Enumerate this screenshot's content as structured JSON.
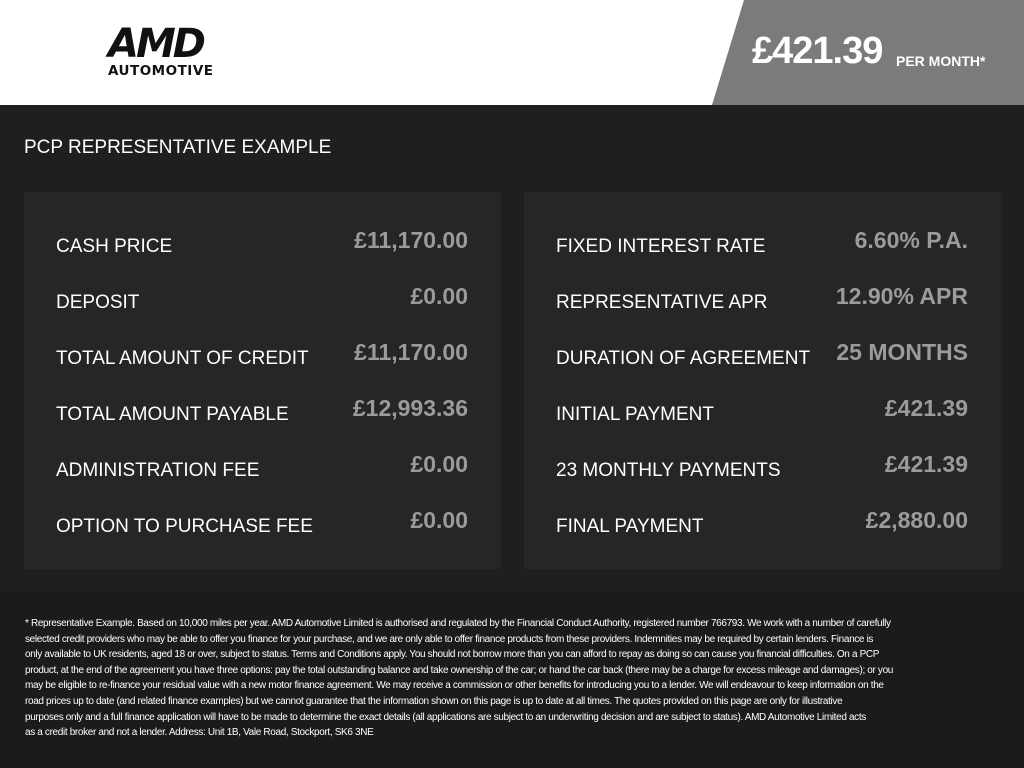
{
  "header": {
    "logo_text": "AMD",
    "logo_subtext": "AUTOMOTIVE",
    "price": "£421.39",
    "price_suffix": "PER MONTH*"
  },
  "title": "PCP REPRESENTATIVE EXAMPLE",
  "left_panel": [
    {
      "label": "CASH PRICE",
      "value": "£11,170.00"
    },
    {
      "label": "DEPOSIT",
      "value": "£0.00"
    },
    {
      "label": "TOTAL AMOUNT OF CREDIT",
      "value": "£11,170.00"
    },
    {
      "label": "TOTAL AMOUNT PAYABLE",
      "value": "£12,993.36"
    },
    {
      "label": "ADMINISTRATION FEE",
      "value": "£0.00"
    },
    {
      "label": "OPTION TO PURCHASE FEE",
      "value": "£0.00"
    }
  ],
  "right_panel": [
    {
      "label": "FIXED INTEREST RATE",
      "value": "6.60% P.A."
    },
    {
      "label": "REPRESENTATIVE APR",
      "value": "12.90% APR"
    },
    {
      "label": "DURATION OF AGREEMENT",
      "value": "25 MONTHS"
    },
    {
      "label": "INITIAL PAYMENT",
      "value": "£421.39"
    },
    {
      "label": "23 MONTHLY PAYMENTS",
      "value": "£421.39"
    },
    {
      "label": "FINAL PAYMENT",
      "value": "£2,880.00"
    }
  ],
  "disclaimer_lines": [
    "* Representative Example. Based on 10,000 miles per year. AMD Automotive Limited is authorised and regulated by the Financial Conduct Authority, registered number 766793. We work with a number of carefully",
    "selected credit providers who may be able to offer you finance for your purchase, and we are only able to offer finance products from these providers. Indemnities may be required by certain lenders. Finance is",
    "only available to UK residents, aged 18 or over, subject to status. Terms and Conditions apply. You should not borrow more than you can afford to repay as doing so can cause you financial difficulties. On a PCP",
    "product, at the end of the agreement you have three options: pay the total outstanding balance and take ownership of the car; or hand the car back (there may be a charge for excess mileage and damages); or you",
    "may be eligible to re-finance your residual value with a new motor finance agreement. We may receive a commission or other benefits for introducing you to a lender. We will endeavour to keep information on the",
    "road prices up to date (and related finance examples) but we cannot guarantee that the information shown on this page is up to date at all times. The quotes provided on this page are only for illustrative",
    "purposes only and a full finance application will have to be made to determine the exact details (all applications are subject to an underwriting decision and are subject to status). AMD Automotive Limited acts",
    "as a credit broker and not a lender. Address: Unit 1B, Vale Road, Stockport, SK6 3NE"
  ]
}
